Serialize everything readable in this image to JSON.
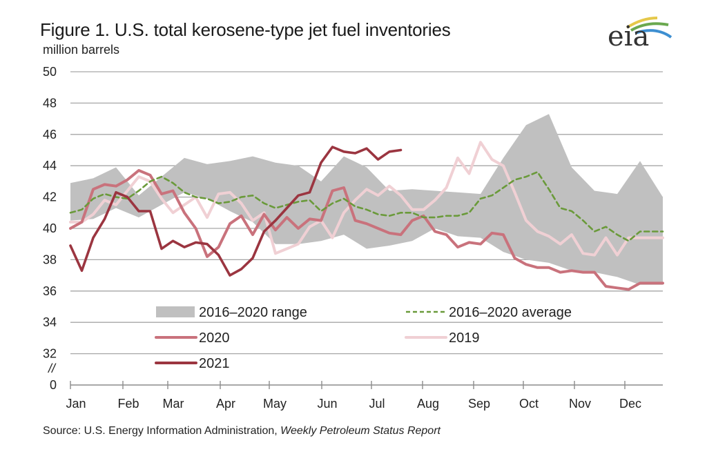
{
  "header": {
    "title": "Figure 1. U.S. total kerosene-type jet fuel inventories",
    "subtitle": "million barrels",
    "logo_text": "eia",
    "source_prefix": "Source: U.S. Energy Information Administration, ",
    "source_report": "Weekly Petroleum Status Report"
  },
  "chart_data": {
    "type": "line",
    "title": "Figure 1. U.S. total kerosene-type jet fuel inventories",
    "ylabel": "million barrels",
    "xlabel": "",
    "ylim": [
      32,
      50
    ],
    "y_break": true,
    "y_ticks": [
      "50",
      "48",
      "46",
      "44",
      "42",
      "40",
      "38",
      "36",
      "34",
      "32",
      "0"
    ],
    "x_ticks": [
      "Jan",
      "Feb",
      "Mar",
      "Apr",
      "May",
      "Jun",
      "Jul",
      "Aug",
      "Sep",
      "Oct",
      "Nov",
      "Dec"
    ],
    "grid": true,
    "legend_placement": "bottom-center",
    "colors": {
      "range": "#c0c0c0",
      "average": "#6a9a3a",
      "y2020": "#c9727c",
      "y2019": "#f0d0d4",
      "y2021": "#9b3540",
      "grid": "#a6a6a6",
      "axis": "#8c8c8c"
    },
    "x_unit": "week of year (0-52)",
    "range_band": {
      "name": "2016–2020 range",
      "x": [
        0,
        2,
        4,
        6,
        8,
        10,
        12,
        14,
        16,
        18,
        20,
        22,
        24,
        26,
        28,
        30,
        32,
        34,
        36,
        38,
        40,
        42,
        44,
        46,
        48,
        50,
        52
      ],
      "low": [
        40.5,
        40.6,
        41.3,
        40.7,
        41.5,
        42.3,
        41.9,
        41.1,
        40.4,
        39.0,
        39.0,
        39.2,
        39.6,
        38.7,
        38.9,
        39.2,
        40.0,
        39.5,
        39.4,
        38.5,
        38.0,
        37.8,
        37.3,
        37.2,
        36.9,
        36.4,
        36.4
      ],
      "high": [
        42.9,
        43.2,
        43.9,
        42.1,
        43.3,
        44.5,
        44.1,
        44.3,
        44.6,
        44.2,
        44.0,
        43.0,
        44.6,
        43.9,
        42.4,
        42.5,
        42.4,
        42.3,
        42.2,
        44.5,
        46.6,
        47.3,
        43.9,
        42.4,
        42.2,
        44.3,
        42.0
      ]
    },
    "series": [
      {
        "name": "2016–2020 average",
        "style": "dashed",
        "x": [
          0,
          1,
          2,
          3,
          4,
          5,
          6,
          7,
          8,
          9,
          10,
          11,
          12,
          13,
          14,
          15,
          16,
          17,
          18,
          19,
          20,
          21,
          22,
          23,
          24,
          25,
          26,
          27,
          28,
          29,
          30,
          31,
          32,
          33,
          34,
          35,
          36,
          37,
          38,
          39,
          40,
          41,
          42,
          43,
          44,
          45,
          46,
          47,
          48,
          49,
          50,
          51,
          52
        ],
        "values": [
          41.0,
          41.2,
          41.9,
          42.2,
          42.0,
          41.9,
          42.4,
          43.0,
          43.3,
          42.9,
          42.3,
          42.0,
          41.9,
          41.6,
          41.7,
          42.0,
          42.1,
          41.6,
          41.3,
          41.5,
          41.7,
          41.8,
          41.1,
          41.6,
          41.9,
          41.4,
          41.2,
          40.9,
          40.8,
          41.0,
          41.0,
          40.7,
          40.7,
          40.8,
          40.8,
          41.0,
          41.9,
          42.1,
          42.6,
          43.1,
          43.3,
          43.6,
          42.5,
          41.3,
          41.1,
          40.5,
          39.8,
          40.1,
          39.6,
          39.2,
          39.8,
          39.8,
          39.8
        ]
      },
      {
        "name": "2020",
        "style": "solid",
        "x": [
          0,
          1,
          2,
          3,
          4,
          5,
          6,
          7,
          8,
          9,
          10,
          11,
          12,
          13,
          14,
          15,
          16,
          17,
          18,
          19,
          20,
          21,
          22,
          23,
          24,
          25,
          26,
          27,
          28,
          29,
          30,
          31,
          32,
          33,
          34,
          35,
          36,
          37,
          38,
          39,
          40,
          41,
          42,
          43,
          44,
          45,
          46,
          47,
          48,
          49,
          50,
          51,
          52
        ],
        "values": [
          40.0,
          40.4,
          42.5,
          42.8,
          42.7,
          43.1,
          43.7,
          43.4,
          42.2,
          42.4,
          41.0,
          40.0,
          38.2,
          38.8,
          40.3,
          40.8,
          39.6,
          40.9,
          39.9,
          40.7,
          40.0,
          40.6,
          40.5,
          42.4,
          42.6,
          40.5,
          40.3,
          40.0,
          39.7,
          39.6,
          40.5,
          40.8,
          39.8,
          39.6,
          38.8,
          39.1,
          39.0,
          39.7,
          39.6,
          38.1,
          37.7,
          37.5,
          37.5,
          37.2,
          37.3,
          37.2,
          37.2,
          36.3,
          36.2,
          36.1,
          36.5,
          36.5,
          36.5
        ]
      },
      {
        "name": "2019",
        "style": "solid",
        "x": [
          0,
          1,
          2,
          3,
          4,
          5,
          6,
          7,
          8,
          9,
          10,
          11,
          12,
          13,
          14,
          15,
          16,
          17,
          18,
          19,
          20,
          21,
          22,
          23,
          24,
          25,
          26,
          27,
          28,
          29,
          30,
          31,
          32,
          33,
          34,
          35,
          36,
          37,
          38,
          39,
          40,
          41,
          42,
          43,
          44,
          45,
          46,
          47,
          48,
          49,
          50,
          51,
          52
        ],
        "values": [
          40.4,
          40.4,
          40.9,
          41.8,
          41.5,
          42.4,
          43.3,
          43.0,
          41.9,
          41.0,
          41.5,
          42.0,
          40.7,
          42.2,
          42.3,
          41.6,
          40.5,
          41.0,
          38.4,
          38.7,
          39.0,
          40.1,
          40.5,
          39.4,
          41.0,
          41.8,
          42.5,
          42.1,
          42.7,
          42.1,
          41.2,
          41.2,
          41.8,
          42.6,
          44.5,
          43.5,
          45.5,
          44.4,
          44.0,
          42.3,
          40.5,
          39.8,
          39.5,
          39.0,
          39.6,
          38.4,
          38.3,
          39.4,
          38.3,
          39.4,
          39.4,
          39.4,
          39.4
        ]
      },
      {
        "name": "2021",
        "style": "solid",
        "x": [
          0,
          1,
          2,
          3,
          4,
          5,
          6,
          7,
          8,
          9,
          10,
          11,
          12,
          13,
          14,
          15,
          16,
          17,
          18,
          19,
          20,
          21,
          22,
          23,
          24,
          25,
          26,
          27,
          28,
          29
        ],
        "values": [
          38.9,
          37.3,
          39.4,
          40.6,
          42.3,
          42.0,
          41.1,
          41.1,
          38.7,
          39.2,
          38.8,
          39.1,
          39.0,
          38.3,
          37.0,
          37.4,
          38.1,
          39.8,
          40.5,
          41.3,
          42.1,
          42.3,
          44.2,
          45.2,
          44.9,
          44.8,
          45.1,
          44.4,
          44.9,
          45.0
        ]
      }
    ]
  },
  "legend": {
    "items": [
      {
        "label": "2016–2020 range"
      },
      {
        "label": "2016–2020 average"
      },
      {
        "label": "2020"
      },
      {
        "label": "2019"
      },
      {
        "label": "2021"
      }
    ]
  }
}
